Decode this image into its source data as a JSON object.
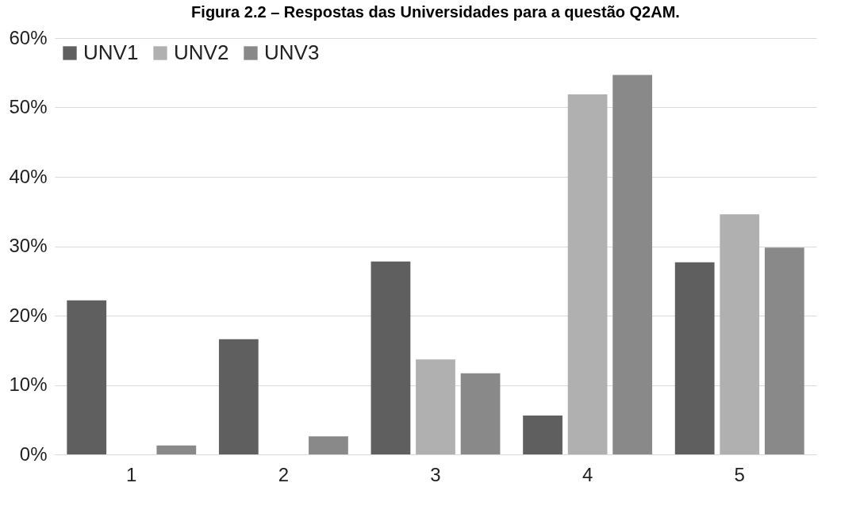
{
  "chart_data": {
    "type": "bar",
    "title": "Figura 2.2 – Respostas das Universidades para a questão Q2AM.",
    "categories": [
      "1",
      "2",
      "3",
      "4",
      "5"
    ],
    "series": [
      {
        "name": "UNV1",
        "color": "#5f5f5f",
        "values": [
          22.2,
          16.6,
          27.8,
          5.6,
          27.7
        ]
      },
      {
        "name": "UNV2",
        "color": "#b0b0b0",
        "values": [
          0,
          0,
          13.7,
          51.9,
          34.6
        ]
      },
      {
        "name": "UNV3",
        "color": "#898989",
        "values": [
          1.3,
          2.6,
          11.7,
          54.7,
          29.8
        ]
      }
    ],
    "ylim": [
      0,
      60
    ],
    "yticks": [
      {
        "value": 0,
        "label": "0%"
      },
      {
        "value": 10,
        "label": "10%"
      },
      {
        "value": 20,
        "label": "20%"
      },
      {
        "value": 30,
        "label": "30%"
      },
      {
        "value": 40,
        "label": "40%"
      },
      {
        "value": 50,
        "label": "50%"
      },
      {
        "value": 60,
        "label": "60%"
      }
    ],
    "grid": "y",
    "legend": "top left"
  }
}
